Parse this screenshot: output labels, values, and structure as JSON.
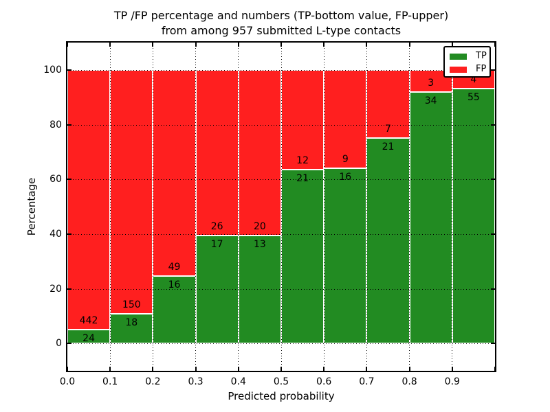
{
  "chart_data": {
    "type": "bar",
    "stacked": true,
    "normalized_to_percent": true,
    "title_lines": [
      "TP /FP percentage and numbers (TP-bottom value, FP-upper)",
      "from among 957 submitted L-type contacts"
    ],
    "total_contacts": 957,
    "xlabel": "Predicted probability",
    "ylabel": "Percentage",
    "x_tick_labels": [
      "0.0",
      "0.1",
      "0.2",
      "0.3",
      "0.4",
      "0.5",
      "0.6",
      "0.7",
      "0.8",
      "0.9"
    ],
    "y_tick_labels": [
      "0",
      "20",
      "40",
      "60",
      "80",
      "100"
    ],
    "y_tick_values": [
      0,
      20,
      40,
      60,
      80,
      100
    ],
    "xlim": [
      0.0,
      1.0
    ],
    "ylim": [
      -10,
      110
    ],
    "bins_start": [
      0.0,
      0.1,
      0.2,
      0.3,
      0.4,
      0.5,
      0.6,
      0.7,
      0.8,
      0.9
    ],
    "bin_width": 0.1,
    "series": [
      {
        "name": "TP",
        "color": "#228b22",
        "counts": [
          24,
          18,
          16,
          17,
          13,
          21,
          16,
          21,
          34,
          55
        ]
      },
      {
        "name": "FP",
        "color": "#ff1f1f",
        "counts": [
          442,
          150,
          49,
          26,
          20,
          12,
          9,
          7,
          3,
          4
        ]
      }
    ],
    "tp_percent_per_bin": [
      5.2,
      10.7,
      24.6,
      39.5,
      39.4,
      63.6,
      64.0,
      75.0,
      91.9,
      93.2
    ],
    "grid": "dotted",
    "legend_position": "upper right",
    "bar_edge_color": "#ffffff",
    "text_color": "#000000",
    "background_color": "#ffffff"
  }
}
